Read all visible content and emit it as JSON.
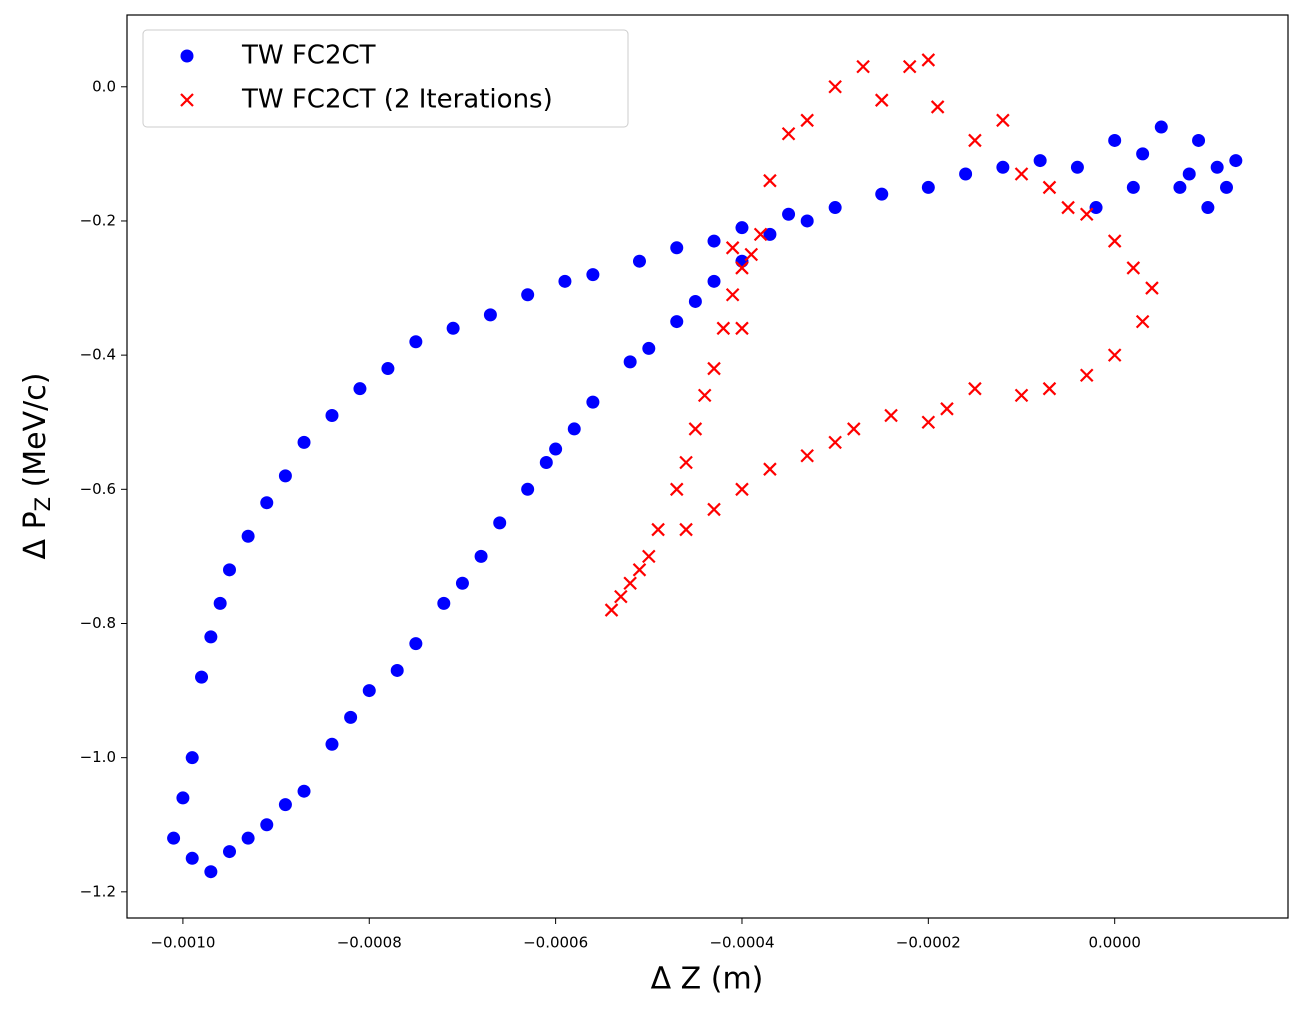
{
  "chart_data": {
    "type": "scatter",
    "xlabel": "Δ Z (m)",
    "ylabel_parts": [
      "Δ P",
      "Z",
      " (MeV/c)"
    ],
    "legend": "upper left",
    "xlim": [
      -0.00106,
      0.000186
    ],
    "ylim": [
      -1.239,
      0.107
    ],
    "xticks": [
      {
        "value": -0.001,
        "label": "−0.0010"
      },
      {
        "value": -0.0008,
        "label": "−0.0008"
      },
      {
        "value": -0.0006,
        "label": "−0.0006"
      },
      {
        "value": -0.0004,
        "label": "−0.0004"
      },
      {
        "value": -0.0002,
        "label": "−0.0002"
      },
      {
        "value": 0,
        "label": "0.0000"
      }
    ],
    "yticks": [
      {
        "value": 0,
        "label": "0.0"
      },
      {
        "value": -0.2,
        "label": "−0.2"
      },
      {
        "value": -0.4,
        "label": "−0.4"
      },
      {
        "value": -0.6,
        "label": "−0.6"
      },
      {
        "value": -0.8,
        "label": "−0.8"
      },
      {
        "value": -1.0,
        "label": "−1.0"
      },
      {
        "value": -1.2,
        "label": "−1.2"
      }
    ],
    "series": [
      {
        "name": "TW FC2CT",
        "color": "#0000ff",
        "marker": "circle",
        "x": [
          -0.00098,
          -0.00097,
          -0.00096,
          -0.00095,
          -0.00093,
          -0.00091,
          -0.00089,
          -0.00087,
          -0.00084,
          -0.00081,
          -0.00078,
          -0.00075,
          -0.00071,
          -0.00067,
          -0.00063,
          -0.00059,
          -0.00056,
          -0.00051,
          -0.00047,
          -0.00043,
          -0.0004,
          -0.00035,
          -0.0003,
          -0.00025,
          -0.0002,
          -0.00016,
          -0.00012,
          -8e-05,
          -4e-05,
          0.0,
          3e-05,
          5e-05,
          7e-05,
          9e-05,
          0.0001,
          0.00011,
          0.00012,
          0.00013,
          8e-05,
          2e-05,
          -2e-05,
          -0.00101,
          -0.001,
          -0.00099,
          -0.00099,
          -0.00097,
          -0.00095,
          -0.00093,
          -0.00091,
          -0.00089,
          -0.00087,
          -0.00084,
          -0.00082,
          -0.0008,
          -0.00077,
          -0.00075,
          -0.00072,
          -0.0007,
          -0.00068,
          -0.00066,
          -0.00063,
          -0.00061,
          -0.0006,
          -0.00058,
          -0.00056,
          -0.00052,
          -0.0005,
          -0.00047,
          -0.00045,
          -0.00043,
          -0.0004,
          -0.00037,
          -0.00033
        ],
        "y": [
          -0.88,
          -0.82,
          -0.77,
          -0.72,
          -0.67,
          -0.62,
          -0.58,
          -0.53,
          -0.49,
          -0.45,
          -0.42,
          -0.38,
          -0.36,
          -0.34,
          -0.31,
          -0.29,
          -0.28,
          -0.26,
          -0.24,
          -0.23,
          -0.21,
          -0.19,
          -0.18,
          -0.16,
          -0.15,
          -0.13,
          -0.12,
          -0.11,
          -0.12,
          -0.08,
          -0.1,
          -0.06,
          -0.15,
          -0.08,
          -0.18,
          -0.12,
          -0.15,
          -0.11,
          -0.13,
          -0.15,
          -0.18,
          -1.12,
          -1.06,
          -1.0,
          -1.15,
          -1.17,
          -1.14,
          -1.12,
          -1.1,
          -1.07,
          -1.05,
          -0.98,
          -0.94,
          -0.9,
          -0.87,
          -0.83,
          -0.77,
          -0.74,
          -0.7,
          -0.65,
          -0.6,
          -0.56,
          -0.54,
          -0.51,
          -0.47,
          -0.41,
          -0.39,
          -0.35,
          -0.32,
          -0.29,
          -0.26,
          -0.22,
          -0.2
        ]
      },
      {
        "name": "TW FC2CT (2 Iterations)",
        "color": "#ff0000",
        "marker": "x",
        "x": [
          -0.00054,
          -0.00053,
          -0.00051,
          -0.00049,
          -0.00047,
          -0.00046,
          -0.00045,
          -0.00044,
          -0.00043,
          -0.00042,
          -0.00041,
          -0.0004,
          -0.00039,
          -0.00038,
          -0.00037,
          -0.00035,
          -0.00033,
          -0.0003,
          -0.00027,
          -0.00025,
          -0.00022,
          -0.0002,
          -0.00019,
          -0.00015,
          -0.00012,
          -0.0001,
          -7e-05,
          -5e-05,
          -3e-05,
          0.0,
          2e-05,
          4e-05,
          3e-05,
          0.0,
          -3e-05,
          -7e-05,
          -0.0001,
          -0.00015,
          -0.00018,
          -0.0002,
          -0.00024,
          -0.00028,
          -0.0003,
          -0.00033,
          -0.00037,
          -0.0004,
          -0.00043,
          -0.00046,
          -0.0005,
          -0.00052,
          -0.0004,
          -0.00041
        ],
        "y": [
          -0.78,
          -0.76,
          -0.72,
          -0.66,
          -0.6,
          -0.56,
          -0.51,
          -0.46,
          -0.42,
          -0.36,
          -0.31,
          -0.27,
          -0.25,
          -0.22,
          -0.14,
          -0.07,
          -0.05,
          0.0,
          0.03,
          -0.02,
          0.03,
          0.04,
          -0.03,
          -0.08,
          -0.05,
          -0.13,
          -0.15,
          -0.18,
          -0.19,
          -0.23,
          -0.27,
          -0.3,
          -0.35,
          -0.4,
          -0.43,
          -0.45,
          -0.46,
          -0.45,
          -0.48,
          -0.5,
          -0.49,
          -0.51,
          -0.53,
          -0.55,
          -0.57,
          -0.6,
          -0.63,
          -0.66,
          -0.7,
          -0.74,
          -0.36,
          -0.24
        ]
      }
    ]
  }
}
